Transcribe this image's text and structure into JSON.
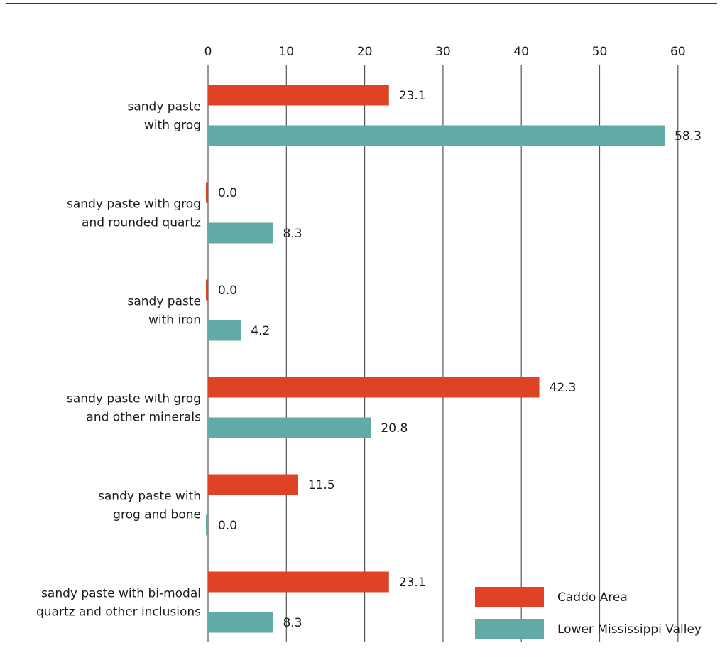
{
  "chart_data": {
    "type": "bar",
    "orientation": "horizontal",
    "title": "",
    "xlabel": "",
    "ylabel": "",
    "xlim": [
      0,
      60
    ],
    "x_ticks": [
      0,
      10,
      20,
      30,
      40,
      50,
      60
    ],
    "x_tick_labels": [
      "0",
      "10",
      "20",
      "30",
      "40",
      "50",
      "60"
    ],
    "x_axis_position": "top",
    "grid": true,
    "legend_position": "bottom-right",
    "categories": [
      [
        "sandy paste",
        "with grog"
      ],
      [
        "sandy paste with grog",
        "and rounded quartz"
      ],
      [
        "sandy paste",
        "with iron"
      ],
      [
        "sandy paste with grog",
        "and other minerals"
      ],
      [
        "sandy paste with",
        "grog and bone"
      ],
      [
        "sandy paste with bi-modal",
        "quartz and other inclusions"
      ]
    ],
    "series": [
      {
        "name": "Caddo Area",
        "color": "#e04226",
        "values": [
          23.1,
          0.0,
          0.0,
          42.3,
          11.5,
          23.1
        ],
        "value_labels": [
          "23.1",
          "0.0",
          "0.0",
          "42.3",
          "11.5",
          "23.1"
        ]
      },
      {
        "name": "Lower Mississippi Valley",
        "color": "#62aaa5",
        "values": [
          58.3,
          8.3,
          4.2,
          20.8,
          0.0,
          8.3
        ],
        "value_labels": [
          "58.3",
          "8.3",
          "4.2",
          "20.8",
          "0.0",
          "8.3"
        ]
      }
    ]
  }
}
